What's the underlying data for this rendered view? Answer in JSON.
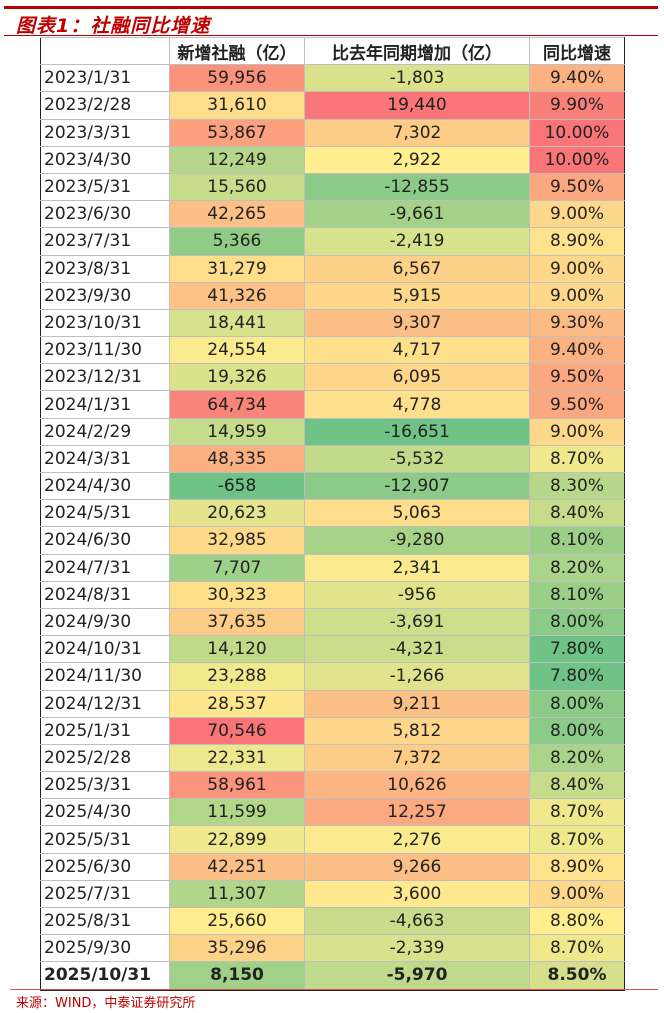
{
  "title": "图表1：社融同比增速",
  "headers": [
    "",
    "新增社融（亿）",
    "比去年同期增加（亿）",
    "同比增速"
  ],
  "rows": [
    [
      "2023/1/31",
      "59,956",
      "-1,803",
      "9.40%"
    ],
    [
      "2023/2/28",
      "31,610",
      "19,440",
      "9.90%"
    ],
    [
      "2023/3/31",
      "53,867",
      "7,302",
      "10.00%"
    ],
    [
      "2023/4/30",
      "12,249",
      "2,922",
      "10.00%"
    ],
    [
      "2023/5/31",
      "15,560",
      "-12,855",
      "9.50%"
    ],
    [
      "2023/6/30",
      "42,265",
      "-9,661",
      "9.00%"
    ],
    [
      "2023/7/31",
      "5,366",
      "-2,419",
      "8.90%"
    ],
    [
      "2023/8/31",
      "31,279",
      "6,567",
      "9.00%"
    ],
    [
      "2023/9/30",
      "41,326",
      "5,915",
      "9.00%"
    ],
    [
      "2023/10/31",
      "18,441",
      "9,307",
      "9.30%"
    ],
    [
      "2023/11/30",
      "24,554",
      "4,717",
      "9.40%"
    ],
    [
      "2023/12/31",
      "19,326",
      "6,095",
      "9.50%"
    ],
    [
      "2024/1/31",
      "64,734",
      "4,778",
      "9.50%"
    ],
    [
      "2024/2/29",
      "14,959",
      "-16,651",
      "9.00%"
    ],
    [
      "2024/3/31",
      "48,335",
      "-5,532",
      "8.70%"
    ],
    [
      "2024/4/30",
      "-658",
      "-12,907",
      "8.30%"
    ],
    [
      "2024/5/31",
      "20,623",
      "5,063",
      "8.40%"
    ],
    [
      "2024/6/30",
      "32,985",
      "-9,280",
      "8.10%"
    ],
    [
      "2024/7/31",
      "7,707",
      "2,341",
      "8.20%"
    ],
    [
      "2024/8/31",
      "30,323",
      "-956",
      "8.10%"
    ],
    [
      "2024/9/30",
      "37,635",
      "-3,691",
      "8.00%"
    ],
    [
      "2024/10/31",
      "14,120",
      "-4,321",
      "7.80%"
    ],
    [
      "2024/11/30",
      "23,288",
      "-1,266",
      "7.80%"
    ],
    [
      "2024/12/31",
      "28,537",
      "9,211",
      "8.00%"
    ],
    [
      "2025/1/31",
      "70,546",
      "5,812",
      "8.00%"
    ],
    [
      "2025/2/28",
      "22,331",
      "7,372",
      "8.20%"
    ],
    [
      "2025/3/31",
      "58,961",
      "10,626",
      "8.40%"
    ],
    [
      "2025/4/30",
      "11,599",
      "12,257",
      "8.70%"
    ],
    [
      "2025/5/31",
      "22,899",
      "2,276",
      "8.70%"
    ],
    [
      "2025/6/30",
      "42,251",
      "9,266",
      "8.90%"
    ],
    [
      "2025/7/31",
      "11,307",
      "3,600",
      "9.00%"
    ],
    [
      "2025/8/31",
      "25,660",
      "-4,663",
      "8.80%"
    ],
    [
      "2025/9/30",
      "35,296",
      "-2,339",
      "8.70%"
    ],
    [
      "2025/10/31",
      "8,150",
      "-5,970",
      "8.50%"
    ]
  ],
  "colors": {
    "low": "#63BE7B",
    "mid": "#FFEB84",
    "high": "#F8696B",
    "accent": "#c00000"
  },
  "source": "来源：WIND，中泰证券研究所"
}
